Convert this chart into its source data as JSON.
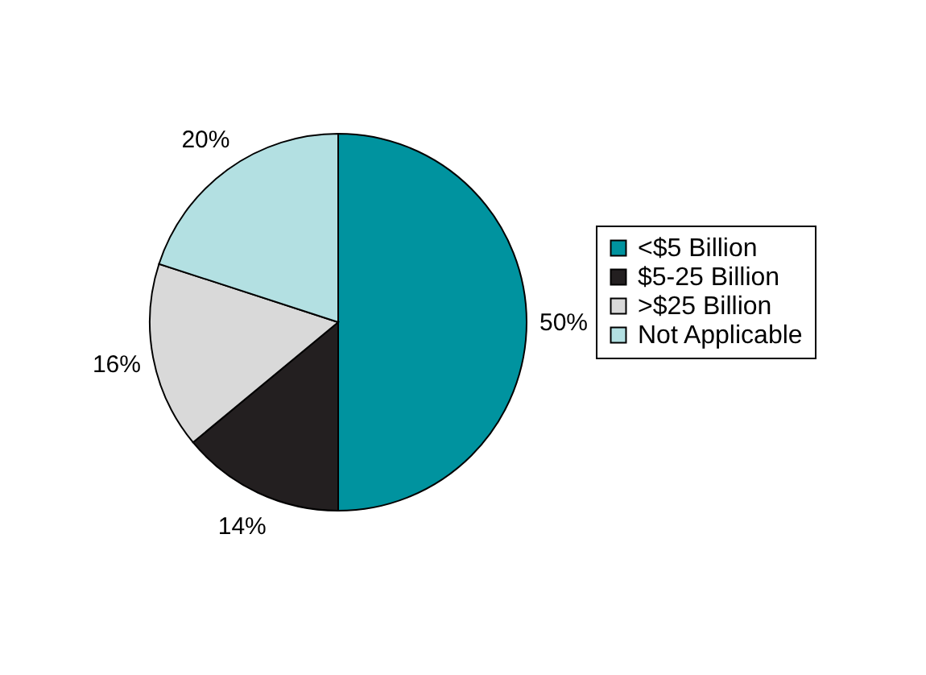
{
  "chart_data": {
    "type": "pie",
    "categories": [
      "<$5 Billion",
      "$5-25 Billion",
      ">$25 Billion",
      "Not Applicable"
    ],
    "values": [
      50,
      14,
      16,
      20
    ],
    "colors": [
      "#00939f",
      "#231f20",
      "#d9d9d9",
      "#b3e0e2"
    ],
    "value_labels": [
      "50%",
      "14%",
      "16%",
      "20%"
    ],
    "legend": "right"
  }
}
